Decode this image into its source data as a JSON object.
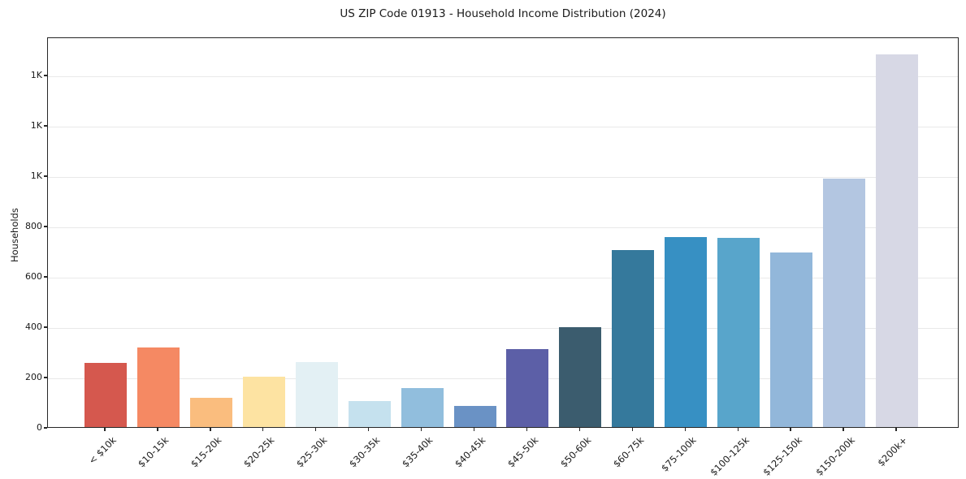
{
  "chart_data": {
    "type": "bar",
    "title": "US ZIP Code 01913 - Household Income Distribution (2024)",
    "xlabel": "",
    "ylabel": "Households",
    "categories": [
      "< $10k",
      "$10-15k",
      "$15-20k",
      "$20-25k",
      "$25-30k",
      "$30-35k",
      "$35-40k",
      "$40-45k",
      "$45-50k",
      "$50-60k",
      "$60-75k",
      "$75-100k",
      "$100-125k",
      "$125-150k",
      "$150-200k",
      "$200k+"
    ],
    "values": [
      255,
      315,
      116,
      200,
      258,
      103,
      155,
      84,
      310,
      398,
      704,
      756,
      752,
      694,
      988,
      1482
    ],
    "bar_colors": [
      "#d5584e",
      "#f58963",
      "#fabd7e",
      "#fde3a2",
      "#e3f0f4",
      "#c5e1ee",
      "#91bedd",
      "#6a92c5",
      "#5c5fa7",
      "#3b5c6e",
      "#35799c",
      "#3790c3",
      "#58a5cb",
      "#92b7da",
      "#b3c6e1",
      "#d7d8e5"
    ],
    "ylim": [
      0,
      1552
    ],
    "yticks": {
      "values": [
        0,
        200,
        400,
        600,
        800,
        1000,
        1200,
        1400
      ],
      "labels": [
        "0",
        "200",
        "400",
        "600",
        "800",
        "1K",
        "1K",
        "1K"
      ]
    },
    "grid": "horizontal",
    "grid_color": "#e9e9e9",
    "axis_color": "#262626",
    "background_color": "#ffffff",
    "legend": null
  }
}
